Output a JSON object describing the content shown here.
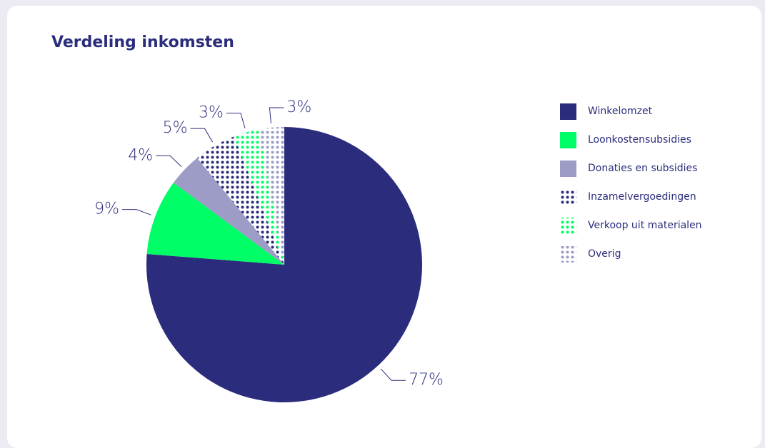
{
  "chart_data": {
    "type": "pie",
    "title": "Verdeling inkomsten",
    "categories": [
      "Winkelomzet",
      "Loonkostensubsidies",
      "Donaties en subsidies",
      "Inzamelvergoedingen",
      "Verkoop uit materialen",
      "Overig"
    ],
    "values": [
      77,
      9,
      4,
      5,
      3,
      3
    ],
    "value_labels": [
      "77%",
      "9%",
      "4%",
      "5%",
      "3%",
      "3%"
    ],
    "colors": [
      "#2b2d7c",
      "#00ff66",
      "#9c9cc6",
      "#2b2d7c",
      "#00ff66",
      "#9c9cc6"
    ],
    "patterns": [
      "solid",
      "solid",
      "solid",
      "dots",
      "dots",
      "dots"
    ],
    "legend": "right"
  }
}
